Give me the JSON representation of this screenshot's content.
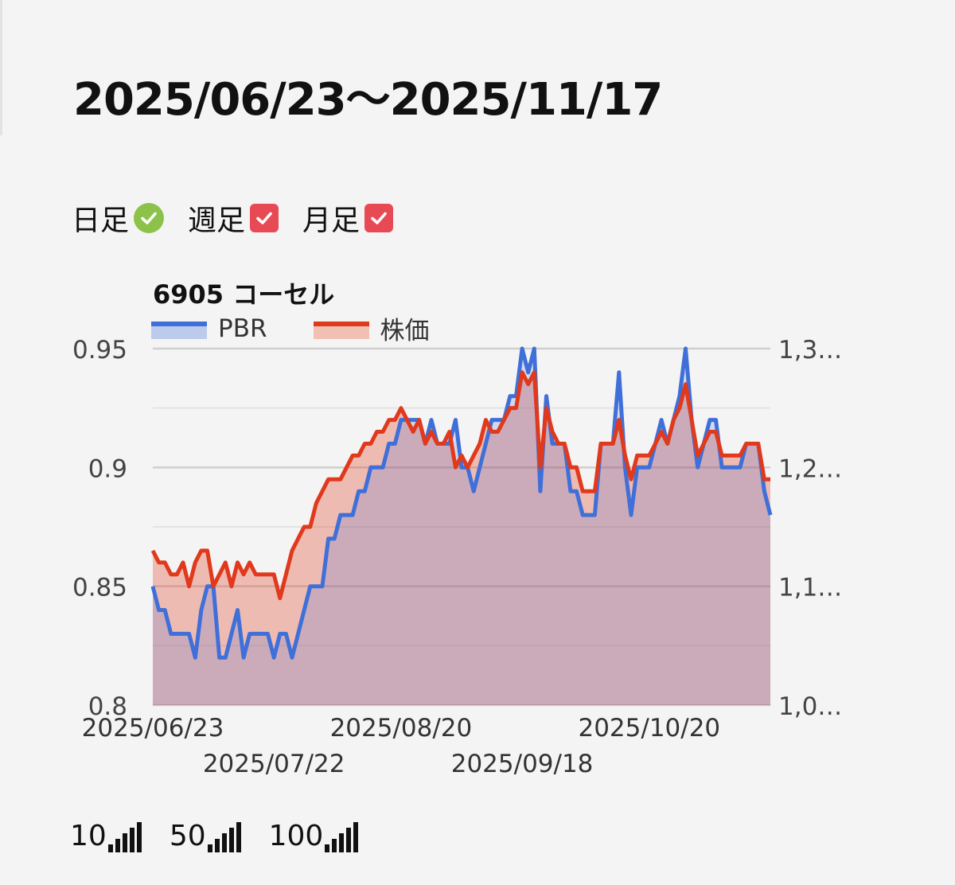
{
  "title": "2025/06/23～2025/11/17",
  "periods": [
    {
      "label": "日足",
      "icon": "check-circle-icon",
      "state": "selected"
    },
    {
      "label": "週足",
      "icon": "checkbox-icon",
      "state": "checked"
    },
    {
      "label": "月足",
      "icon": "checkbox-icon",
      "state": "checked"
    }
  ],
  "colors": {
    "pbr": "#3f6fd8",
    "price": "#e0391c",
    "ok": "#8cc24a",
    "check": "#e84a55"
  },
  "chart_data": {
    "type": "line",
    "title": "6905 コーセル",
    "legend_position": "top-left",
    "grid": true,
    "series": [
      {
        "name": "PBR",
        "axis": "left",
        "values": [
          0.85,
          0.84,
          0.84,
          0.83,
          0.83,
          0.83,
          0.83,
          0.82,
          0.84,
          0.85,
          0.85,
          0.82,
          0.82,
          0.83,
          0.84,
          0.82,
          0.83,
          0.83,
          0.83,
          0.83,
          0.82,
          0.83,
          0.83,
          0.82,
          0.83,
          0.84,
          0.85,
          0.85,
          0.85,
          0.87,
          0.87,
          0.88,
          0.88,
          0.88,
          0.89,
          0.89,
          0.9,
          0.9,
          0.9,
          0.91,
          0.91,
          0.92,
          0.92,
          0.92,
          0.92,
          0.91,
          0.92,
          0.91,
          0.91,
          0.91,
          0.92,
          0.9,
          0.9,
          0.89,
          0.9,
          0.91,
          0.92,
          0.92,
          0.92,
          0.93,
          0.93,
          0.95,
          0.94,
          0.95,
          0.89,
          0.93,
          0.91,
          0.91,
          0.91,
          0.89,
          0.89,
          0.88,
          0.88,
          0.88,
          0.91,
          0.91,
          0.91,
          0.94,
          0.9,
          0.88,
          0.9,
          0.9,
          0.9,
          0.91,
          0.92,
          0.91,
          0.92,
          0.93,
          0.95,
          0.92,
          0.9,
          0.91,
          0.92,
          0.92,
          0.9,
          0.9,
          0.9,
          0.9,
          0.91,
          0.91,
          0.91,
          0.89,
          0.88
        ]
      },
      {
        "name": "株価",
        "axis": "right",
        "values": [
          1.13,
          1.12,
          1.12,
          1.11,
          1.11,
          1.12,
          1.1,
          1.12,
          1.13,
          1.13,
          1.1,
          1.11,
          1.12,
          1.1,
          1.12,
          1.11,
          1.12,
          1.11,
          1.11,
          1.11,
          1.11,
          1.09,
          1.11,
          1.13,
          1.14,
          1.15,
          1.15,
          1.17,
          1.18,
          1.19,
          1.19,
          1.19,
          1.2,
          1.21,
          1.21,
          1.22,
          1.22,
          1.23,
          1.23,
          1.24,
          1.24,
          1.25,
          1.24,
          1.23,
          1.24,
          1.22,
          1.23,
          1.22,
          1.22,
          1.23,
          1.2,
          1.21,
          1.2,
          1.21,
          1.22,
          1.24,
          1.23,
          1.23,
          1.24,
          1.25,
          1.25,
          1.28,
          1.27,
          1.28,
          1.2,
          1.25,
          1.23,
          1.22,
          1.22,
          1.2,
          1.2,
          1.18,
          1.18,
          1.18,
          1.22,
          1.22,
          1.22,
          1.24,
          1.21,
          1.19,
          1.21,
          1.21,
          1.21,
          1.22,
          1.23,
          1.22,
          1.24,
          1.25,
          1.27,
          1.24,
          1.21,
          1.22,
          1.23,
          1.23,
          1.21,
          1.21,
          1.21,
          1.21,
          1.22,
          1.22,
          1.22,
          1.19,
          1.19
        ]
      }
    ],
    "y_left": {
      "ylim": [
        0.8,
        0.95
      ],
      "ticks": [
        "0.95",
        "0.9",
        "0.85",
        "0.8"
      ]
    },
    "y_right": {
      "ylim": [
        1.0,
        1.3
      ],
      "ticks": [
        "1,3…",
        "1,2…",
        "1,1…",
        "1,0…"
      ]
    },
    "x_ticks": [
      {
        "label": "2025/06/23",
        "index": 0,
        "row": 0
      },
      {
        "label": "2025/07/22",
        "index": 20,
        "row": 1
      },
      {
        "label": "2025/08/20",
        "index": 41,
        "row": 0
      },
      {
        "label": "2025/09/18",
        "index": 61,
        "row": 1
      },
      {
        "label": "2025/10/20",
        "index": 82,
        "row": 0
      }
    ]
  },
  "moving_averages": [
    {
      "label": "10",
      "icon": "signal-bars-icon"
    },
    {
      "label": "50",
      "icon": "signal-bars-icon"
    },
    {
      "label": "100",
      "icon": "signal-bars-icon"
    }
  ]
}
